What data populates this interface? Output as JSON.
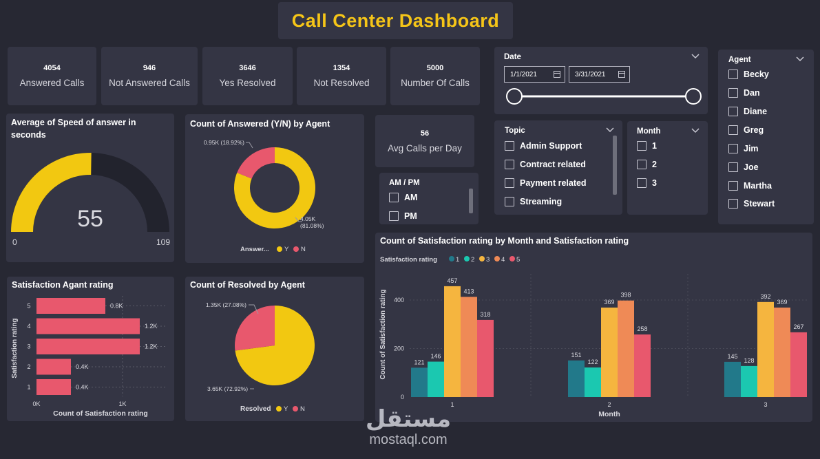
{
  "title": "Call Center Dashboard",
  "kpis": [
    {
      "value": "4054",
      "label": "Answered Calls"
    },
    {
      "value": "946",
      "label": "Not Answered Calls"
    },
    {
      "value": "3646",
      "label": "Yes Resolved"
    },
    {
      "value": "1354",
      "label": "Not Resolved"
    },
    {
      "value": "5000",
      "label": "Number Of Calls"
    }
  ],
  "avg_calls": {
    "value": "56",
    "label": "Avg Calls per Day"
  },
  "date_slicer": {
    "title": "Date",
    "start": "1/1/2021",
    "end": "3/31/2021"
  },
  "agent_slicer": {
    "title": "Agent",
    "items": [
      "Becky",
      "Dan",
      "Diane",
      "Greg",
      "Jim",
      "Joe",
      "Martha",
      "Stewart"
    ]
  },
  "topic_slicer": {
    "title": "Topic",
    "items": [
      "Admin Support",
      "Contract related",
      "Payment related",
      "Streaming"
    ]
  },
  "month_slicer": {
    "title": "Month",
    "items": [
      "1",
      "2",
      "3"
    ]
  },
  "ampm_slicer": {
    "title": "AM / PM",
    "items": [
      "AM",
      "PM"
    ]
  },
  "colors": {
    "yellow": "#f2c811",
    "pink": "#e8586d",
    "dark": "#22232d",
    "teal_dark": "#22798a",
    "teal": "#1bc8b0",
    "orange_yellow": "#f5b53f",
    "orange": "#ef8a56",
    "red_pink": "#e8586d"
  },
  "chart_data": [
    {
      "type": "gauge",
      "title": "Average of Speed of answer in seconds",
      "value": 55,
      "value_label": "55",
      "min": 0,
      "max": 109,
      "min_label": "0",
      "max_label": "109"
    },
    {
      "type": "donut",
      "title": "Count of Answered (Y/N) by Agent",
      "legend_title": "Answer...",
      "slices": [
        {
          "name": "Y",
          "value": 4054,
          "label_top": "4.05K",
          "label_bottom": "(81.08%)"
        },
        {
          "name": "N",
          "value": 946,
          "label": "0.95K (18.92%)"
        }
      ]
    },
    {
      "type": "bar",
      "orientation": "horizontal",
      "title": "Satisfaction Agant rating",
      "xlabel": "Count of Satisfaction rating",
      "ylabel": "Satisfaction rating",
      "categories": [
        "5",
        "4",
        "3",
        "2",
        "1"
      ],
      "values": [
        800,
        1200,
        1200,
        400,
        400
      ],
      "value_labels": [
        "0.8K",
        "1.2K",
        "1.2K",
        "0.4K",
        "0.4K"
      ],
      "xlim": [
        0,
        1000
      ],
      "x_ticks": [
        "0K",
        "1K"
      ]
    },
    {
      "type": "pie",
      "title": "Count of Resolved by Agent",
      "legend_title": "Resolved",
      "slices": [
        {
          "name": "Y",
          "value": 3646,
          "label": "3.65K (72.92%)"
        },
        {
          "name": "N",
          "value": 1354,
          "label": "1.35K (27.08%)"
        }
      ]
    },
    {
      "type": "bar",
      "title": "Count of Satisfaction rating by Month and Satisfaction rating",
      "legend_title": "Satisfaction rating",
      "xlabel": "Month",
      "ylabel": "Count of Satisfaction rating",
      "categories": [
        "1",
        "2",
        "3"
      ],
      "ylim": [
        0,
        500
      ],
      "y_ticks": [
        "0",
        "200",
        "400"
      ],
      "series": [
        {
          "name": "1",
          "values": [
            121,
            151,
            145
          ]
        },
        {
          "name": "2",
          "values": [
            146,
            122,
            128
          ]
        },
        {
          "name": "3",
          "values": [
            457,
            369,
            392
          ]
        },
        {
          "name": "4",
          "values": [
            413,
            398,
            369
          ]
        },
        {
          "name": "5",
          "values": [
            318,
            258,
            267
          ]
        }
      ]
    }
  ],
  "watermark": {
    "arabic": "مستقل",
    "latin": "mostaql.com"
  }
}
